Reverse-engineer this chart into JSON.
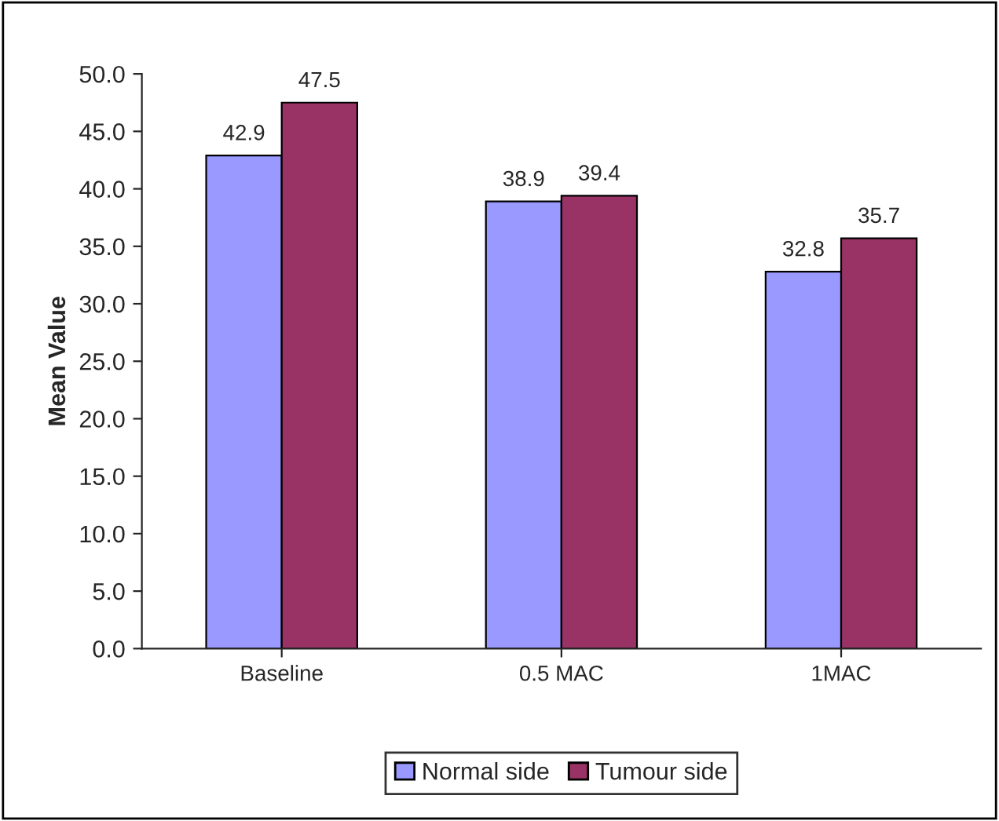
{
  "chart_data": {
    "type": "bar",
    "ylabel": "Mean Value",
    "categories": [
      "Baseline",
      "0.5 MAC",
      "1MAC"
    ],
    "series": [
      {
        "name": "Normal side",
        "color": "#9999ff",
        "values": [
          42.9,
          38.9,
          32.8
        ]
      },
      {
        "name": "Tumour side",
        "color": "#993366",
        "values": [
          47.5,
          39.4,
          35.7
        ]
      }
    ],
    "ylim": [
      0,
      50
    ],
    "yticks": [
      {
        "value": 0,
        "label": "0.0"
      },
      {
        "value": 5,
        "label": "5.0"
      },
      {
        "value": 10,
        "label": "10.0"
      },
      {
        "value": 15,
        "label": "15.0"
      },
      {
        "value": 20,
        "label": "20.0"
      },
      {
        "value": 25,
        "label": "25.0"
      },
      {
        "value": 30,
        "label": "30.0"
      },
      {
        "value": 35,
        "label": "35.0"
      },
      {
        "value": 40,
        "label": "40.0"
      },
      {
        "value": 45,
        "label": "45.0"
      },
      {
        "value": 50,
        "label": "50.0"
      }
    ],
    "data_labels": true,
    "legend": "bottom",
    "grid": false
  }
}
